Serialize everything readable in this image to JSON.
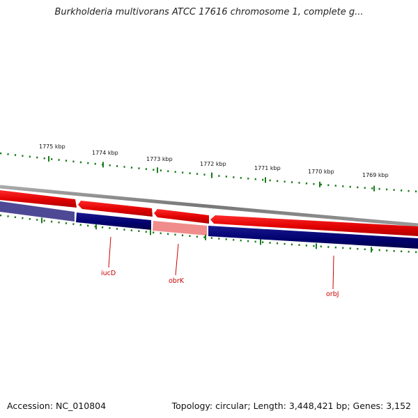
{
  "title": "Burkholderia multivorans ATCC 17616 chromosome 1, complete g...",
  "footer": {
    "accession": "Accession: NC_010804",
    "summary": "Topology: circular; Length: 3,448,421 bp; Genes: 3,152"
  },
  "scale": {
    "labels": [
      "1775 kbp",
      "1774 kbp",
      "1773 kbp",
      "1772 kbp",
      "1771 kbp",
      "1770 kbp",
      "1769 kbp"
    ],
    "positions_kbp": [
      1775,
      1774,
      1773,
      1772,
      1771,
      1770,
      1769
    ]
  },
  "genes": [
    {
      "name": "iucD",
      "strand": "reverse",
      "start_kbp": 1773.6,
      "end_kbp": 1774.7,
      "highlight": false
    },
    {
      "name": "obrK",
      "strand": "reverse",
      "start_kbp": 1772.6,
      "end_kbp": 1773.6,
      "highlight": true
    },
    {
      "name": "orbJ",
      "strand": "reverse",
      "start_kbp": 1768.0,
      "end_kbp": 1772.6,
      "highlight": false
    }
  ],
  "colors": {
    "forward_track": "#e00000",
    "forward_track_highlight": "#f08888",
    "reverse_track": "#00007a",
    "reverse_track_highlight": "#f09090",
    "ticks": "#1a7a1a",
    "gene_label": "#cc0000",
    "backbone": "#888888"
  }
}
